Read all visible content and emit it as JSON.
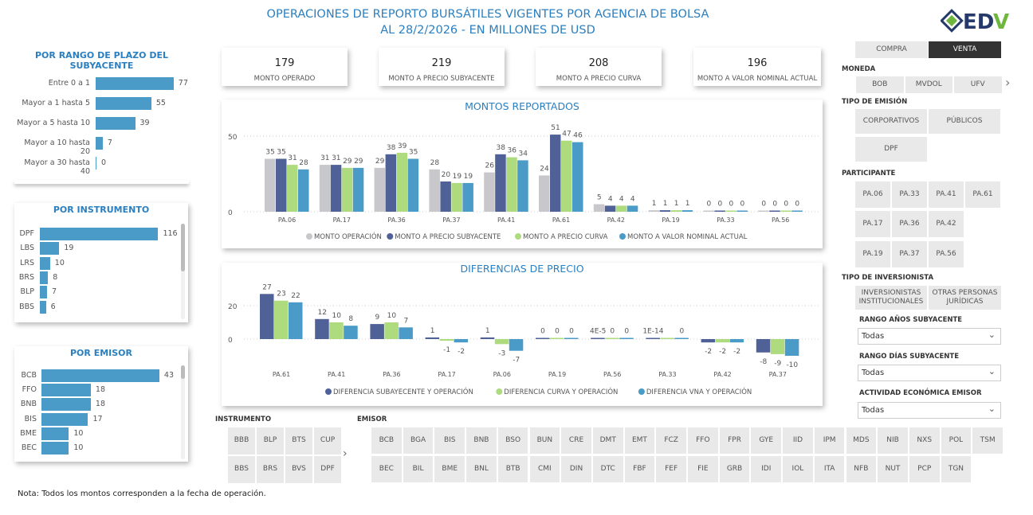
{
  "header": {
    "title_line1": "OPERACIONES DE REPORTO BURSÁTILES VIGENTES POR AGENCIA DE BOLSA",
    "title_line2": "AL 28/2/2026 - EN MILLONES DE USD",
    "logo_text": "EDV",
    "logo_subtitle": "ENTIDAD DE DEPÓSITO DE VALORES"
  },
  "plazo": {
    "title": "POR RANGO DE PLAZO DEL SUBYACENTE",
    "items": [
      {
        "label": "Entre 0 a 1",
        "value": 77
      },
      {
        "label": "Mayor a 1 hasta 5",
        "value": 55
      },
      {
        "label": "Mayor a 5 hasta 10",
        "value": 39
      },
      {
        "label": "Mayor a 10 hasta 20",
        "value": 7
      },
      {
        "label": "Mayor a 30 hasta 40",
        "value": 0
      }
    ]
  },
  "instrumento": {
    "title": "POR INSTRUMENTO",
    "items": [
      {
        "label": "DPF",
        "value": 116
      },
      {
        "label": "LBS",
        "value": 19
      },
      {
        "label": "LRS",
        "value": 10
      },
      {
        "label": "BRS",
        "value": 8
      },
      {
        "label": "BLP",
        "value": 7
      },
      {
        "label": "BBS",
        "value": 6
      }
    ]
  },
  "emisor": {
    "title": "POR EMISOR",
    "items": [
      {
        "label": "BCB",
        "value": 43
      },
      {
        "label": "FFO",
        "value": 18
      },
      {
        "label": "BNB",
        "value": 18
      },
      {
        "label": "BIS",
        "value": 17
      },
      {
        "label": "BME",
        "value": 10
      },
      {
        "label": "BEC",
        "value": 10
      }
    ]
  },
  "kpis": [
    {
      "value": "179",
      "label": "MONTO OPERADO"
    },
    {
      "value": "219",
      "label": "MONTO A PRECIO SUBYACENTE"
    },
    {
      "value": "208",
      "label": "MONTO A PRECIO CURVA"
    },
    {
      "value": "196",
      "label": "MONTO A VALOR NOMINAL ACTUAL"
    }
  ],
  "chart_data": [
    {
      "type": "bar",
      "title": "MONTOS REPORTADOS",
      "categories": [
        "PA.06",
        "PA.17",
        "PA.36",
        "PA.37",
        "PA.41",
        "PA.61",
        "PA.42",
        "PA.19",
        "PA.33",
        "PA.56"
      ],
      "yticks": [
        0,
        50
      ],
      "ylim": [
        0,
        55
      ],
      "grid": true,
      "legend": "bottom",
      "series": [
        {
          "name": "MONTO OPERACIÓN",
          "color": "#c8c8cc",
          "values": [
            35,
            31,
            29,
            28,
            26,
            24,
            5,
            1,
            0,
            0
          ]
        },
        {
          "name": "MONTO A PRECIO SUBYACENTE",
          "color": "#4f6196",
          "values": [
            35,
            31,
            38,
            20,
            38,
            51,
            4,
            1,
            0,
            0
          ]
        },
        {
          "name": "MONTO A PRECIO CURVA",
          "color": "#addb7e",
          "values": [
            31,
            29,
            39,
            19,
            36,
            47,
            4,
            1,
            0,
            0
          ]
        },
        {
          "name": "MONTO A VALOR NOMINAL ACTUAL",
          "color": "#4a9bc8",
          "values": [
            28,
            29,
            35,
            19,
            34,
            46,
            4,
            1,
            0,
            0
          ]
        }
      ]
    },
    {
      "type": "bar",
      "title": "DIFERENCIAS DE PRECIO",
      "categories": [
        "PA.61",
        "PA.41",
        "PA.36",
        "PA.17",
        "PA.06",
        "PA.19",
        "PA.56",
        "PA.33",
        "PA.42",
        "PA.37"
      ],
      "yticks": [
        0,
        20
      ],
      "ylim": [
        -10,
        28
      ],
      "grid": true,
      "legend": "bottom",
      "series": [
        {
          "name": "DIFERENCIA SUBAYECENTE Y OPERACIÓN",
          "color": "#4f6196",
          "values": [
            27,
            12,
            9,
            1,
            1,
            0,
            4e-05,
            1e-14,
            -2,
            -8
          ],
          "labels": [
            "27",
            "12",
            "9",
            "1",
            "1",
            "0",
            "4E-5",
            "1E-14",
            "-2",
            "-8"
          ]
        },
        {
          "name": "DIFERENCIA CURVA Y OPERACIÓN",
          "color": "#addb7e",
          "values": [
            23,
            10,
            10,
            -1,
            -3,
            0,
            0,
            0,
            -2,
            -9
          ],
          "labels": [
            "23",
            "10",
            "10",
            "-1",
            "-3",
            "0",
            "0",
            "",
            "-2",
            "-9"
          ]
        },
        {
          "name": "DIFERENCIA VNA Y OPERACIÓN",
          "color": "#4a9bc8",
          "values": [
            22,
            8,
            7,
            -2,
            -7,
            0,
            0,
            0,
            -2,
            -10
          ],
          "labels": [
            "22",
            "8",
            "7",
            "-2",
            "-7",
            "0",
            "0",
            "0",
            "-2",
            "-10"
          ]
        }
      ]
    }
  ],
  "filters": {
    "instrumento_label": "INSTRUMENTO",
    "instrumentos": [
      "BBB",
      "BLP",
      "BTS",
      "CUP",
      "BBS",
      "BRS",
      "BVS",
      "DPF"
    ],
    "emisor_label": "EMISOR",
    "emisores": [
      "BCB",
      "BGA",
      "BIS",
      "BNB",
      "BSO",
      "BUN",
      "CRE",
      "DMT",
      "EMT",
      "FCZ",
      "FFO",
      "FPR",
      "GYE",
      "IID",
      "IPM",
      "MDS",
      "NIB",
      "NXS",
      "POL",
      "TSM",
      "BEC",
      "BIL",
      "BME",
      "BNL",
      "BTB",
      "CMI",
      "DIN",
      "DTC",
      "FBF",
      "FEF",
      "FIE",
      "GRB",
      "IDI",
      "IOL",
      "ITA",
      "NFB",
      "NUT",
      "PCP",
      "TGN"
    ]
  },
  "side": {
    "compra": "COMPRA",
    "venta": "VENTA",
    "moneda_label": "MONEDA",
    "monedas": [
      "BOB",
      "MVDOL",
      "UFV"
    ],
    "tipo_emision_label": "TIPO DE EMISIÓN",
    "tipos_emision": [
      "CORPORATIVOS",
      "PÚBLICOS",
      "DPF"
    ],
    "participante_label": "PARTICIPANTE",
    "participantes": [
      "PA.06",
      "PA.33",
      "PA.41",
      "PA.61",
      "PA.17",
      "PA.36",
      "PA.42",
      "PA.19",
      "PA.37",
      "PA.56"
    ],
    "inversionista_label": "TIPO DE INVERSIONISTA",
    "inversionistas": [
      "INVERSIONISTAS INSTITUCIONALES",
      "OTRAS PERSONAS JURÍDICAS"
    ],
    "rango_anios_label": "RANGO AÑOS SUBYACENTE",
    "rango_anios_value": "Todas",
    "rango_dias_label": "RANGO DÍAS SUBYACENTE",
    "rango_dias_value": "Todas",
    "actividad_label": "ACTIVIDAD ECONÓMICA EMISOR",
    "actividad_value": "Todas"
  },
  "note": "Nota: Todos los montos corresponden a la fecha de operación."
}
